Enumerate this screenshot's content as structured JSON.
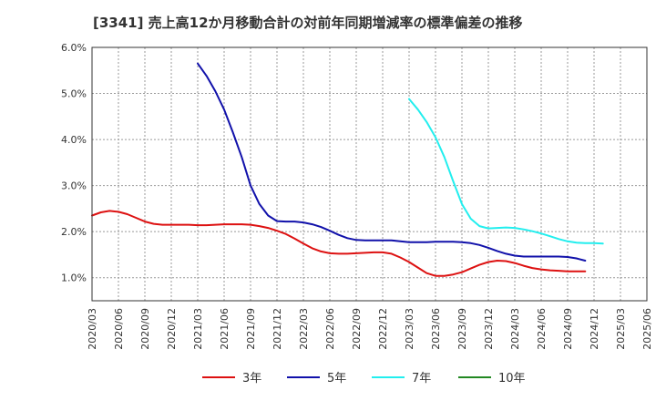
{
  "chart_data": {
    "type": "line",
    "title": "[3341]  売上高12か月移動合計の対前年同期増減率の標準偏差の推移",
    "xlabel": "",
    "ylabel": "",
    "ylim": [
      0.5,
      6.0
    ],
    "yticks": [
      1.0,
      2.0,
      3.0,
      4.0,
      5.0,
      6.0
    ],
    "ytick_labels": [
      "1.0%",
      "2.0%",
      "3.0%",
      "4.0%",
      "5.0%",
      "6.0%"
    ],
    "xtick_labels": [
      "2020/03",
      "2020/06",
      "2020/09",
      "2020/12",
      "2021/03",
      "2021/06",
      "2021/09",
      "2021/12",
      "2022/03",
      "2022/06",
      "2022/09",
      "2022/12",
      "2023/03",
      "2023/06",
      "2023/09",
      "2023/12",
      "2024/03",
      "2024/06",
      "2024/09",
      "2024/12",
      "2025/03",
      "2025/06"
    ],
    "grid": true,
    "legend_position": "bottom",
    "series": [
      {
        "name": "3年",
        "color": "#dd1111",
        "start_index": 0,
        "values": [
          2.35,
          2.42,
          2.45,
          2.43,
          2.38,
          2.3,
          2.22,
          2.17,
          2.15,
          2.15,
          2.15,
          2.15,
          2.14,
          2.14,
          2.15,
          2.16,
          2.16,
          2.16,
          2.15,
          2.12,
          2.08,
          2.02,
          1.95,
          1.85,
          1.74,
          1.64,
          1.57,
          1.53,
          1.52,
          1.52,
          1.53,
          1.54,
          1.55,
          1.55,
          1.52,
          1.44,
          1.34,
          1.22,
          1.1,
          1.04,
          1.04,
          1.07,
          1.12,
          1.2,
          1.28,
          1.34,
          1.37,
          1.36,
          1.32,
          1.26,
          1.21,
          1.18,
          1.16,
          1.15,
          1.14,
          1.14,
          1.14
        ]
      },
      {
        "name": "5年",
        "color": "#1111aa",
        "start_index": 12,
        "values": [
          5.65,
          5.38,
          5.05,
          4.65,
          4.15,
          3.62,
          3.0,
          2.6,
          2.35,
          2.23,
          2.22,
          2.22,
          2.2,
          2.16,
          2.1,
          2.02,
          1.93,
          1.86,
          1.82,
          1.81,
          1.81,
          1.81,
          1.81,
          1.79,
          1.77,
          1.77,
          1.77,
          1.78,
          1.78,
          1.78,
          1.77,
          1.75,
          1.71,
          1.65,
          1.58,
          1.52,
          1.48,
          1.46,
          1.46,
          1.46,
          1.46,
          1.46,
          1.45,
          1.42,
          1.37
        ]
      },
      {
        "name": "7年",
        "color": "#22eeee",
        "start_index": 36,
        "values": [
          4.88,
          4.65,
          4.38,
          4.05,
          3.62,
          3.1,
          2.6,
          2.28,
          2.12,
          2.07,
          2.08,
          2.09,
          2.08,
          2.05,
          2.01,
          1.96,
          1.9,
          1.84,
          1.79,
          1.76,
          1.75,
          1.75,
          1.74
        ]
      },
      {
        "name": "10年",
        "color": "#228822",
        "start_index": 0,
        "values": []
      }
    ]
  }
}
